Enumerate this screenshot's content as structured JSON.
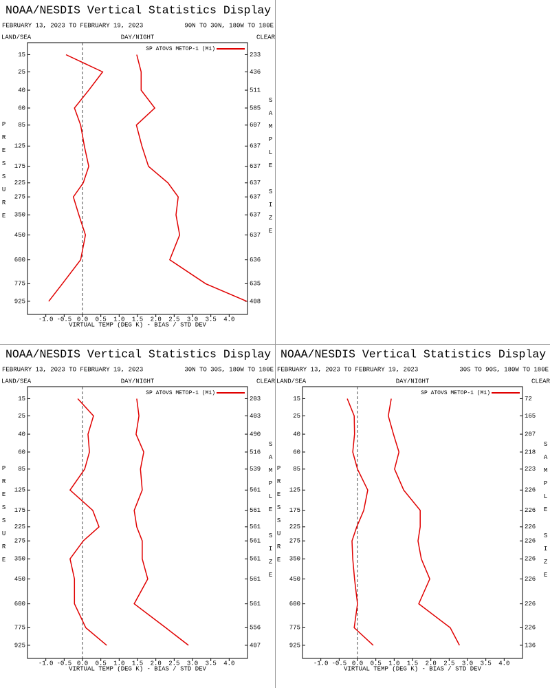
{
  "chart_data": [
    {
      "type": "line",
      "title": "NOAA/NESDIS Vertical Statistics Display",
      "date_range": "FEBRUARY 13, 2023 TO FEBRUARY 19, 2023",
      "region": "90N TO 30N, 180W TO 180E",
      "land_sea": "LAND/SEA",
      "day_night": "DAY/NIGHT",
      "clear": "CLEAR",
      "x_label": "VIRTUAL TEMP (DEG K) - BIAS / STD DEV",
      "y_label": "PRESSURE",
      "y2_label": "SAMPLE SIZE",
      "xlim": [
        -1.5,
        4.5
      ],
      "xticks": [
        {
          "value": -1.0,
          "label": "-1.0"
        },
        {
          "value": -0.5,
          "label": "-0.5"
        },
        {
          "value": 0,
          "label": "0.0"
        },
        {
          "value": 0.5,
          "label": "0.5"
        },
        {
          "value": 1,
          "label": "1.0"
        },
        {
          "value": 1.5,
          "label": "1.5"
        },
        {
          "value": 2,
          "label": "2.0"
        },
        {
          "value": 2.5,
          "label": "2.5"
        },
        {
          "value": 3,
          "label": "3.0"
        },
        {
          "value": 3.5,
          "label": "3.5"
        },
        {
          "value": 4,
          "label": "4.0"
        }
      ],
      "ylim": [
        10,
        1050
      ],
      "yticks": [
        15,
        25,
        40,
        60,
        85,
        125,
        175,
        225,
        275,
        350,
        450,
        600,
        775,
        925
      ],
      "sample_sizes": [
        233,
        436,
        511,
        585,
        607,
        637,
        637,
        637,
        637,
        637,
        637,
        636,
        635,
        408
      ],
      "series": [
        {
          "name": "SP ATOVS METOP-1 (M1)",
          "color": "#e00000",
          "bias": [
            -0.45,
            0.55,
            0.17,
            -0.22,
            -0.05,
            0.05,
            0.17,
            0.02,
            -0.25,
            -0.1,
            0.08,
            -0.05,
            -0.55,
            -0.92
          ],
          "std_dev": [
            1.48,
            1.6,
            1.6,
            1.97,
            1.47,
            1.62,
            1.8,
            2.33,
            2.61,
            2.55,
            2.65,
            2.38,
            3.36,
            4.48
          ]
        }
      ]
    },
    {
      "type": "line",
      "title": "NOAA/NESDIS Vertical Statistics Display",
      "date_range": "FEBRUARY 13, 2023 TO FEBRUARY 19, 2023",
      "region": "30N TO 30S, 180W TO 180E",
      "land_sea": "LAND/SEA",
      "day_night": "DAY/NIGHT",
      "clear": "CLEAR",
      "x_label": "VIRTUAL TEMP (DEG K) - BIAS / STD DEV",
      "y_label": "PRESSURE",
      "y2_label": "SAMPLE SIZE",
      "xlim": [
        -1.5,
        4.5
      ],
      "xticks": [
        {
          "value": -1.0,
          "label": "-1.0"
        },
        {
          "value": -0.5,
          "label": "-0.5"
        },
        {
          "value": 0,
          "label": "0.0"
        },
        {
          "value": 0.5,
          "label": "0.5"
        },
        {
          "value": 1,
          "label": "1.0"
        },
        {
          "value": 1.5,
          "label": "1.5"
        },
        {
          "value": 2,
          "label": "2.0"
        },
        {
          "value": 2.5,
          "label": "2.5"
        },
        {
          "value": 3,
          "label": "3.0"
        },
        {
          "value": 3.5,
          "label": "3.5"
        },
        {
          "value": 4,
          "label": "4.0"
        }
      ],
      "ylim": [
        10,
        1050
      ],
      "yticks": [
        15,
        25,
        40,
        60,
        85,
        125,
        175,
        225,
        275,
        350,
        450,
        600,
        775,
        925
      ],
      "sample_sizes": [
        203,
        403,
        490,
        516,
        539,
        561,
        561,
        561,
        561,
        561,
        561,
        561,
        556,
        407
      ],
      "series": [
        {
          "name": "SP ATOVS METOP-1 (M1)",
          "color": "#e00000",
          "bias": [
            -0.13,
            0.3,
            0.15,
            0.19,
            0.06,
            -0.34,
            0.28,
            0.45,
            0.02,
            -0.34,
            -0.22,
            -0.22,
            0.09,
            0.66
          ],
          "std_dev": [
            1.48,
            1.54,
            1.46,
            1.67,
            1.58,
            1.63,
            1.41,
            1.48,
            1.63,
            1.63,
            1.78,
            1.41,
            2.27,
            2.89
          ]
        }
      ]
    },
    {
      "type": "line",
      "title": "NOAA/NESDIS Vertical Statistics Display",
      "date_range": "FEBRUARY 13, 2023 TO FEBRUARY 19, 2023",
      "region": "30S TO 90S, 180W TO 180E",
      "land_sea": "LAND/SEA",
      "day_night": "DAY/NIGHT",
      "clear": "CLEAR",
      "x_label": "VIRTUAL TEMP (DEG K) - BIAS / STD DEV",
      "y_label": "PRESSURE",
      "y2_label": "SAMPLE SIZE",
      "xlim": [
        -1.5,
        4.5
      ],
      "xticks": [
        {
          "value": -1.0,
          "label": "-1.0"
        },
        {
          "value": -0.5,
          "label": "-0.5"
        },
        {
          "value": 0,
          "label": "0.0"
        },
        {
          "value": 0.5,
          "label": "0.5"
        },
        {
          "value": 1,
          "label": "1.0"
        },
        {
          "value": 1.5,
          "label": "1.5"
        },
        {
          "value": 2,
          "label": "2.0"
        },
        {
          "value": 2.5,
          "label": "2.5"
        },
        {
          "value": 3,
          "label": "3.0"
        },
        {
          "value": 3.5,
          "label": "3.5"
        },
        {
          "value": 4,
          "label": "4.0"
        }
      ],
      "ylim": [
        10,
        1050
      ],
      "yticks": [
        15,
        25,
        40,
        60,
        85,
        125,
        175,
        225,
        275,
        350,
        450,
        600,
        775,
        925
      ],
      "sample_sizes": [
        72,
        165,
        207,
        218,
        223,
        226,
        226,
        226,
        226,
        226,
        226,
        226,
        226,
        136
      ],
      "series": [
        {
          "name": "SP ATOVS METOP-1 (M1)",
          "color": "#e00000",
          "bias": [
            -0.28,
            -0.09,
            -0.08,
            -0.13,
            0,
            0.28,
            0.17,
            -0.02,
            -0.15,
            -0.13,
            -0.08,
            0,
            -0.09,
            0.43
          ],
          "std_dev": [
            0.92,
            0.84,
            0.98,
            1.13,
            1.01,
            1.26,
            1.71,
            1.71,
            1.65,
            1.74,
            1.97,
            1.67,
            2.53,
            2.78
          ]
        }
      ]
    }
  ]
}
